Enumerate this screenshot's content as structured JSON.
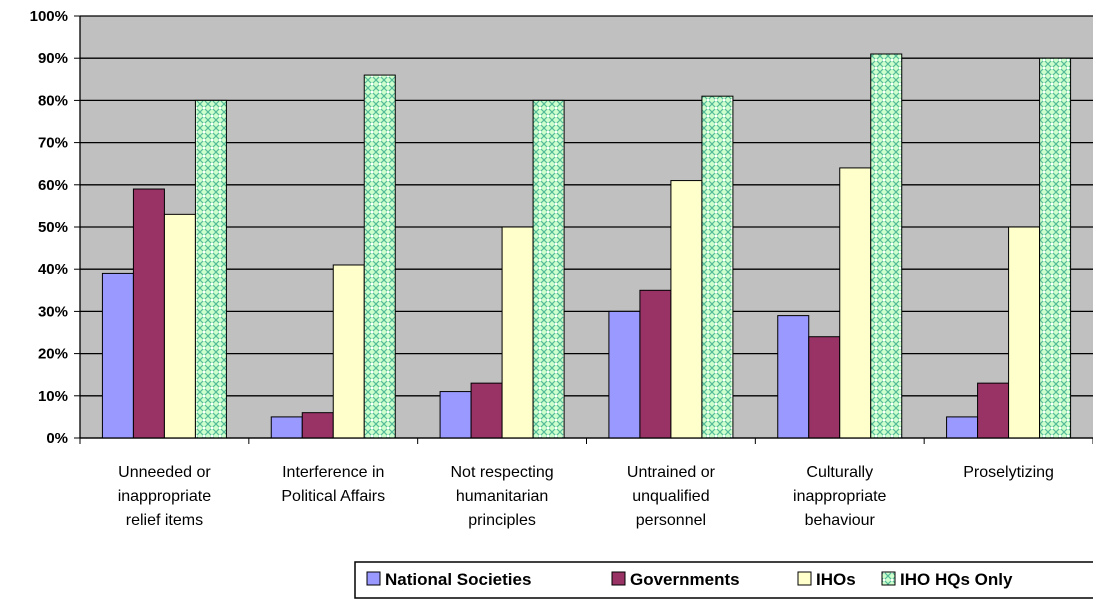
{
  "chart_data": {
    "type": "bar",
    "title": "",
    "xlabel": "",
    "ylabel": "",
    "ylim": [
      0,
      100
    ],
    "y_ticks": [
      "0%",
      "10%",
      "20%",
      "30%",
      "40%",
      "50%",
      "60%",
      "70%",
      "80%",
      "90%",
      "100%"
    ],
    "grid": true,
    "legend_position": "bottom-right",
    "categories": [
      [
        "Unneeded or",
        "inappropriate",
        "relief items"
      ],
      [
        "Interference in",
        "Political Affairs"
      ],
      [
        "Not respecting",
        "humanitarian",
        "principles"
      ],
      [
        "Untrained or",
        "unqualified",
        "personnel"
      ],
      [
        "Culturally",
        "inappropriate",
        "behaviour"
      ],
      [
        "Proselytizing"
      ]
    ],
    "series": [
      {
        "name": "National Societies",
        "color": "#9999ff",
        "pattern": "solid",
        "values": [
          39,
          5,
          11,
          30,
          29,
          5
        ]
      },
      {
        "name": "Governments",
        "color": "#993366",
        "pattern": "solid",
        "values": [
          59,
          6,
          13,
          35,
          24,
          13
        ]
      },
      {
        "name": "IHOs",
        "color": "#ffffcc",
        "pattern": "solid",
        "values": [
          53,
          41,
          50,
          61,
          64,
          50
        ]
      },
      {
        "name": "IHO HQs Only",
        "color": "#ccffcc",
        "pattern": "lattice",
        "values": [
          80,
          86,
          80,
          81,
          91,
          90
        ]
      }
    ],
    "plot_background": "#c0c0c0"
  }
}
